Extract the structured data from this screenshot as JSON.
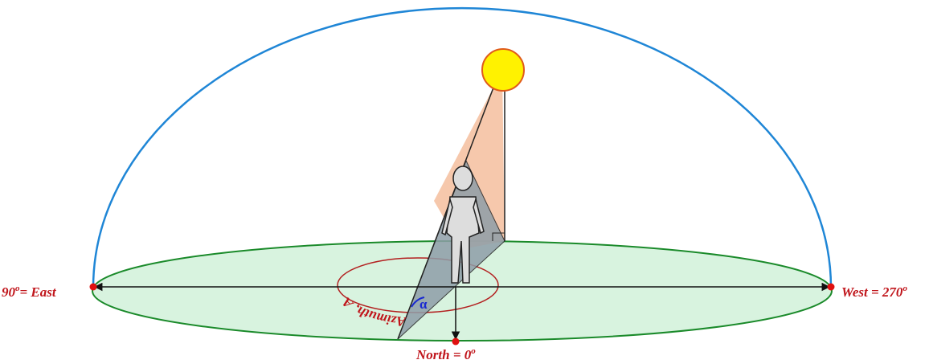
{
  "labels": {
    "east": {
      "degrees": "90",
      "degree_sign": "o",
      "name": "= East"
    },
    "west": {
      "name": "West = 270",
      "degree_sign": "o"
    },
    "north": {
      "name": "North = 0",
      "degree_sign": "o"
    },
    "azimuth": "Azimuth, A",
    "altitude": "α"
  }
}
